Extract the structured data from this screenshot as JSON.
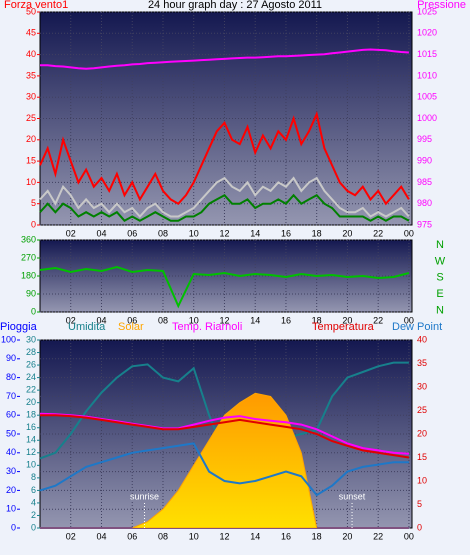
{
  "chart_data": [
    {
      "type": "line",
      "title": "24 hour graph day : 27 Agosto 2011",
      "ylabel": "Forza vento1",
      "x": [
        0,
        0.5,
        1,
        1.5,
        2,
        2.5,
        3,
        3.5,
        4,
        4.5,
        5,
        5.5,
        6,
        6.5,
        7,
        7.5,
        8,
        8.5,
        9,
        9.5,
        10,
        10.5,
        11,
        11.5,
        12,
        12.5,
        13,
        13.5,
        14,
        14.5,
        15,
        15.5,
        16,
        16.5,
        17,
        17.5,
        18,
        18.5,
        19,
        19.5,
        20,
        20.5,
        21,
        21.5,
        22,
        22.5,
        23,
        23.5,
        24
      ],
      "xlim": [
        0,
        24.2
      ],
      "xticks": [
        {
          "value": 2,
          "label": "02"
        },
        {
          "value": 4,
          "label": "04"
        },
        {
          "value": 6,
          "label": "06"
        },
        {
          "value": 8,
          "label": "08"
        },
        10,
        12,
        14,
        16,
        18,
        20,
        22,
        {
          "value": 24,
          "label": "00"
        }
      ],
      "ylim": [
        0,
        50
      ],
      "yticks": [
        0,
        5,
        10,
        15,
        20,
        25,
        30,
        35,
        40,
        45,
        50
      ],
      "y2lim": [
        975,
        1025
      ],
      "y2ticks": [
        975,
        980,
        985,
        990,
        995,
        1000,
        1005,
        1010,
        1015,
        1020,
        1025
      ],
      "grid": true,
      "series": [
        {
          "color": "#ff0000",
          "values": [
            14,
            18,
            12,
            20,
            15,
            10,
            13,
            9,
            11,
            8,
            12,
            7,
            10,
            6,
            9,
            12,
            8,
            6,
            5,
            7,
            10,
            14,
            18,
            22,
            24,
            20,
            19,
            23,
            17,
            21,
            18,
            22,
            20,
            25,
            19,
            22,
            26,
            18,
            14,
            10,
            8,
            7,
            9,
            6,
            8,
            5,
            7,
            9,
            6
          ]
        },
        {
          "color": "#c8c8c8",
          "values": [
            6,
            8,
            5,
            9,
            7,
            4,
            6,
            4,
            5,
            3,
            5,
            3,
            4,
            2,
            4,
            5,
            3,
            2,
            2,
            3,
            4,
            6,
            8,
            10,
            11,
            9,
            8,
            10,
            7,
            9,
            8,
            10,
            9,
            11,
            8,
            10,
            11,
            8,
            6,
            4,
            3,
            3,
            4,
            2,
            3,
            2,
            3,
            4,
            2
          ]
        },
        {
          "color": "#008000",
          "values": [
            3,
            5,
            3,
            5,
            4,
            2,
            3,
            2,
            3,
            2,
            3,
            1,
            2,
            1,
            2,
            3,
            2,
            1,
            1,
            2,
            2,
            3,
            5,
            6,
            7,
            5,
            5,
            6,
            4,
            5,
            5,
            6,
            5,
            7,
            5,
            6,
            7,
            5,
            4,
            2,
            2,
            2,
            2,
            1,
            2,
            1,
            2,
            2,
            1
          ]
        },
        {
          "name": "Pressione",
          "color": "#ff00ff",
          "axis": "y2",
          "values": [
            1012.5,
            1012.5,
            1012.3,
            1012.2,
            1012,
            1011.8,
            1011.7,
            1011.8,
            1012,
            1012.2,
            1012.4,
            1012.5,
            1012.7,
            1012.8,
            1013,
            1013.1,
            1013.2,
            1013.3,
            1013.4,
            1013.5,
            1013.6,
            1013.7,
            1013.8,
            1013.9,
            1014,
            1014.1,
            1014.2,
            1014.3,
            1014.3,
            1014.4,
            1014.5,
            1014.6,
            1014.6,
            1014.7,
            1014.8,
            1014.9,
            1015,
            1015.1,
            1015.3,
            1015.5,
            1015.7,
            1015.9,
            1016.1,
            1016.2,
            1016.1,
            1016,
            1015.8,
            1015.6,
            1015.5
          ]
        }
      ]
    },
    {
      "type": "line",
      "x": [
        0,
        1,
        2,
        3,
        4,
        5,
        6,
        7,
        8,
        9,
        10,
        11,
        12,
        13,
        14,
        15,
        16,
        17,
        18,
        19,
        20,
        21,
        22,
        23,
        24
      ],
      "xlim": [
        0,
        24.2
      ],
      "xticks": [
        {
          "value": 2,
          "label": "02"
        },
        {
          "value": 4,
          "label": "04"
        },
        {
          "value": 6,
          "label": "06"
        },
        {
          "value": 8,
          "label": "08"
        },
        10,
        12,
        14,
        16,
        18,
        20,
        22,
        {
          "value": 24,
          "label": "00"
        }
      ],
      "ylim": [
        0,
        360
      ],
      "yticks": [
        0,
        90,
        180,
        270,
        360
      ],
      "compass": [
        "N",
        "W",
        "S",
        "E",
        "N"
      ],
      "grid": true,
      "series": [
        {
          "color": "#00c000",
          "values": [
            210,
            220,
            200,
            215,
            205,
            225,
            200,
            210,
            205,
            30,
            190,
            185,
            195,
            180,
            190,
            185,
            175,
            190,
            180,
            185,
            175,
            180,
            170,
            175,
            195
          ]
        }
      ]
    },
    {
      "type": "line",
      "x": [
        0,
        1,
        2,
        3,
        4,
        5,
        6,
        7,
        8,
        9,
        10,
        11,
        12,
        13,
        14,
        15,
        16,
        17,
        18,
        19,
        20,
        21,
        22,
        23,
        24
      ],
      "xlim": [
        0,
        24.2
      ],
      "xticks": [
        {
          "value": 2,
          "label": "02"
        },
        {
          "value": 4,
          "label": "04"
        },
        {
          "value": 6,
          "label": "06"
        },
        {
          "value": 8,
          "label": "08"
        },
        10,
        12,
        14,
        16,
        18,
        20,
        22,
        {
          "value": 24,
          "label": "00"
        }
      ],
      "ylim": [
        0,
        100
      ],
      "yticks": [
        0,
        10,
        20,
        30,
        40,
        50,
        60,
        70,
        80,
        90,
        100
      ],
      "y3lim": [
        0,
        30
      ],
      "y3ticks": [
        0,
        2,
        4,
        6,
        8,
        10,
        12,
        14,
        16,
        18,
        20,
        22,
        24,
        26,
        28,
        30
      ],
      "y2lim": [
        0,
        40
      ],
      "y2ticks": [
        0,
        5,
        10,
        15,
        20,
        25,
        30,
        35,
        40
      ],
      "grid": true,
      "annotations": [
        {
          "text": "sunrise",
          "x": 6.8
        },
        {
          "text": "sunset",
          "x": 20.3
        }
      ],
      "series": [
        {
          "name": "Pioggia",
          "color": "#0000ff",
          "values": [
            0,
            0,
            0,
            0,
            0,
            0,
            0,
            0,
            0,
            0,
            0,
            0,
            0,
            0,
            0,
            0,
            0,
            0,
            0,
            0,
            0,
            0,
            0,
            0,
            0
          ]
        },
        {
          "name": "Umidita",
          "color": "#17808c",
          "values": [
            37,
            40,
            50,
            62,
            72,
            80,
            86,
            87,
            80,
            78,
            85,
            60,
            40,
            35,
            38,
            45,
            48,
            50,
            52,
            70,
            80,
            83,
            86,
            88,
            88
          ]
        },
        {
          "name": "Solar",
          "color": "#ffa500",
          "axis": "y3",
          "area": true,
          "values": [
            0,
            0,
            0,
            0,
            0,
            0,
            0,
            1,
            3,
            6,
            10,
            14,
            18,
            20,
            21.5,
            21,
            18,
            12,
            0,
            0,
            0,
            0,
            0,
            0,
            0
          ]
        },
        {
          "name": "Temp. Riarnoli",
          "color": "#ff00ff",
          "axis": "y2",
          "values": [
            24.3,
            24.2,
            24,
            23.7,
            23.2,
            22.7,
            22.2,
            21.7,
            21.2,
            21.2,
            22,
            22.8,
            23.5,
            23.8,
            23.2,
            22.8,
            22.5,
            22,
            21,
            19.5,
            18,
            17,
            16.5,
            16,
            15.8
          ]
        },
        {
          "name": "Temperatura",
          "color": "#e00000",
          "axis": "y2",
          "values": [
            24,
            24,
            23.8,
            23.5,
            23,
            22.5,
            22,
            21.5,
            21,
            21,
            21.5,
            22,
            22.5,
            23,
            22.5,
            22,
            21.5,
            21,
            20,
            18.5,
            17.5,
            16.5,
            16,
            15.5,
            15
          ]
        },
        {
          "name": "Dew Point",
          "color": "#1e78c8",
          "axis": "y2",
          "values": [
            8,
            9,
            11,
            13,
            14,
            15,
            16,
            16.5,
            17,
            17.5,
            18,
            12,
            10,
            9.5,
            10,
            11,
            12,
            11,
            7,
            9,
            12,
            13,
            13.5,
            14,
            14
          ]
        }
      ]
    }
  ]
}
